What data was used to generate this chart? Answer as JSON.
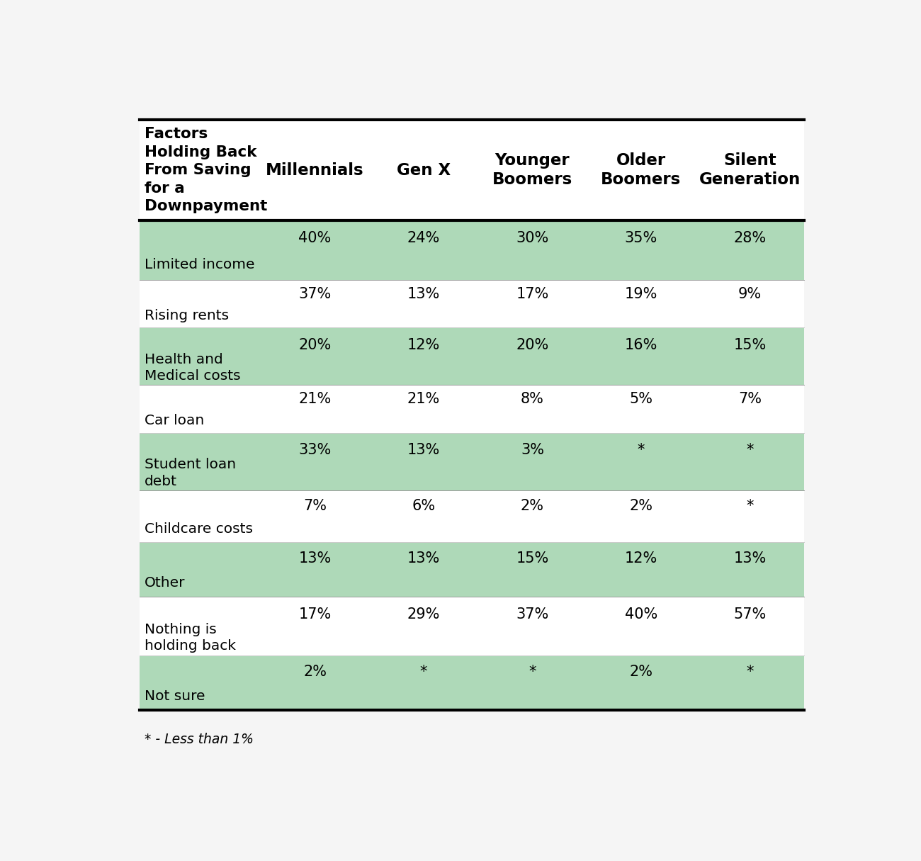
{
  "title_col": "Factors\nHolding Back\nFrom Saving\nfor a\nDownpayment",
  "columns": [
    "Millennials",
    "Gen X",
    "Younger\nBoomers",
    "Older\nBoomers",
    "Silent\nGeneration"
  ],
  "rows": [
    {
      "label": "Limited income",
      "values": [
        "40%",
        "24%",
        "30%",
        "35%",
        "28%"
      ],
      "shaded": true
    },
    {
      "label": "Rising rents",
      "values": [
        "37%",
        "13%",
        "17%",
        "19%",
        "9%"
      ],
      "shaded": false
    },
    {
      "label": "Health and\nMedical costs",
      "values": [
        "20%",
        "12%",
        "20%",
        "16%",
        "15%"
      ],
      "shaded": true
    },
    {
      "label": "Car loan",
      "values": [
        "21%",
        "21%",
        "8%",
        "5%",
        "7%"
      ],
      "shaded": false
    },
    {
      "label": "Student loan\ndebt",
      "values": [
        "33%",
        "13%",
        "3%",
        "*",
        "*"
      ],
      "shaded": true
    },
    {
      "label": "Childcare costs",
      "values": [
        "7%",
        "6%",
        "2%",
        "2%",
        "*"
      ],
      "shaded": false
    },
    {
      "label": "Other",
      "values": [
        "13%",
        "13%",
        "15%",
        "12%",
        "13%"
      ],
      "shaded": true
    },
    {
      "label": "Nothing is\nholding back",
      "values": [
        "17%",
        "29%",
        "37%",
        "40%",
        "57%"
      ],
      "shaded": false
    },
    {
      "label": "Not sure",
      "values": [
        "2%",
        "*",
        "*",
        "2%",
        "*"
      ],
      "shaded": true
    }
  ],
  "footnote": "* - Less than 1%",
  "shaded_color": "#aed9b8",
  "white_color": "#ffffff",
  "background_color": "#f5f5f5",
  "header_text_color": "#000000",
  "cell_text_color": "#000000",
  "label_text_color": "#000000",
  "table_bg": "#ffffff"
}
